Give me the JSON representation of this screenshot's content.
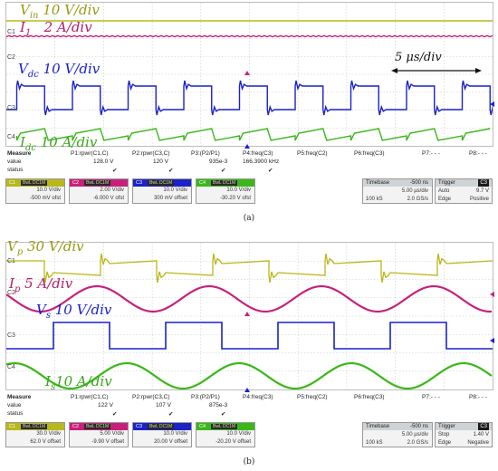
{
  "panel_a": {
    "labels": {
      "vin": {
        "main": "V",
        "sub": "in",
        "rest": " 10 V/div",
        "color": "#9a9a12"
      },
      "i1": {
        "main": "I",
        "sub": "1",
        "rest": "   2 A/div",
        "color": "#b0206a"
      },
      "vdc": {
        "main": "V",
        "sub": "dc",
        "rest": " 10 V/div",
        "color": "#1a22c8"
      },
      "idc": {
        "main": "I",
        "sub": "dc",
        "rest": " 10 A/div",
        "color": "#3aa61a"
      }
    },
    "time_scale": "5 μs/div",
    "markers": [
      "C1",
      "C2",
      "C3",
      "C4"
    ],
    "measure": {
      "title": "Measure",
      "row_labels": [
        "value",
        "status"
      ],
      "params": [
        {
          "name": "P1:rpwr(C1,C)",
          "value": "128.0 V",
          "status": "✔"
        },
        {
          "name": "P2:rpwr(C3,C)",
          "value": "120 V",
          "status": "✔"
        },
        {
          "name": "P3:(P2/P1)",
          "value": "935e-3",
          "status": "✔"
        },
        {
          "name": "P4:freq(C3)",
          "value": "166.3900 kHz",
          "status": "✔"
        },
        {
          "name": "P5:freq(C2)",
          "value": "",
          "status": ""
        },
        {
          "name": "P6:freq(C3)",
          "value": "",
          "status": ""
        },
        {
          "name": "P7:- - -",
          "value": "",
          "status": ""
        },
        {
          "name": "P8:- - -",
          "value": "",
          "status": ""
        }
      ]
    },
    "channels": [
      {
        "id": "C1",
        "tag": "BwL DC1M",
        "scale": "10.0 V/div",
        "offset": "-500 mV ofst",
        "color": "#b8b81a"
      },
      {
        "id": "C2",
        "tag": "BwL DC1M",
        "scale": "2.00 V/div",
        "offset": "-6.000 V ofst",
        "color": "#c8207a"
      },
      {
        "id": "C3",
        "tag": "BwL DC1M",
        "scale": "10.0 V/div",
        "offset": "300 mV offset",
        "color": "#1a22c8"
      },
      {
        "id": "C4",
        "tag": "BwL DC1M",
        "scale": "10.0 V/div",
        "offset": "-30.20 V ofst",
        "color": "#3ab81a"
      }
    ],
    "timebase": {
      "label": "Timebase",
      "delay": "-500 ns",
      "per_div": "5.00 µs/div",
      "samples": "100 kS",
      "rate": "2.0 GS/s"
    },
    "trigger": {
      "label": "Trigger",
      "ch": "C3",
      "mode": "Auto",
      "level": "9.7 V",
      "type": "Edge",
      "slope": "Positive"
    },
    "caption": "(a)"
  },
  "panel_b": {
    "labels": {
      "vp": {
        "main": "V",
        "sub": "p",
        "rest": " 30 V/div",
        "color": "#9a9a12"
      },
      "ip": {
        "main": "I",
        "sub": "p",
        "rest": " 5 A/div",
        "color": "#b0206a"
      },
      "vs": {
        "main": "V",
        "sub": "s",
        "rest": " 10 V/div",
        "color": "#1a22c8"
      },
      "is": {
        "main": "I",
        "sub": "s",
        "rest": "10 A/div",
        "color": "#3aa61a"
      }
    },
    "markers": [
      "C1",
      "C2",
      "C3",
      "C4"
    ],
    "measure": {
      "title": "Measure",
      "row_labels": [
        "value",
        "status"
      ],
      "params": [
        {
          "name": "P1:rpwr(C1,C)",
          "value": "122 V",
          "status": "✔"
        },
        {
          "name": "P2:rpwr(C3,C)",
          "value": "107 V",
          "status": "✔"
        },
        {
          "name": "P3:(P2/P1)",
          "value": "875e-3",
          "status": "✔"
        },
        {
          "name": "P4:freq(C3)",
          "value": "",
          "status": ""
        },
        {
          "name": "P5:freq(C2)",
          "value": "",
          "status": ""
        },
        {
          "name": "P6:freq(C3)",
          "value": "",
          "status": ""
        },
        {
          "name": "P7:- - -",
          "value": "",
          "status": ""
        },
        {
          "name": "P8:- - -",
          "value": "",
          "status": ""
        }
      ]
    },
    "channels": [
      {
        "id": "C1",
        "tag": "BwL DC1M",
        "scale": "30.0 V/div",
        "offset": "62.0 V offset",
        "color": "#b8b81a"
      },
      {
        "id": "C2",
        "tag": "BwL DC1M",
        "scale": "5.00 V/div",
        "offset": "-9.90 V offset",
        "color": "#c8207a"
      },
      {
        "id": "C3",
        "tag": "BwL DC1M",
        "scale": "10.0 V/div",
        "offset": "20.00 V offset",
        "color": "#1a22c8"
      },
      {
        "id": "C4",
        "tag": "BwL DC1M",
        "scale": "10.0 V/div",
        "offset": "-20.20 V offset",
        "color": "#3ab81a"
      }
    ],
    "timebase": {
      "label": "Timebase",
      "delay": "-500 ns",
      "per_div": "5.00 µs/div",
      "samples": "100 kS",
      "rate": "2.0 GS/s"
    },
    "trigger": {
      "label": "Trigger",
      "ch": "C3",
      "mode": "Stop",
      "level": "1.40 V",
      "type": "Edge",
      "slope": "Negative"
    },
    "caption": "(b)"
  }
}
